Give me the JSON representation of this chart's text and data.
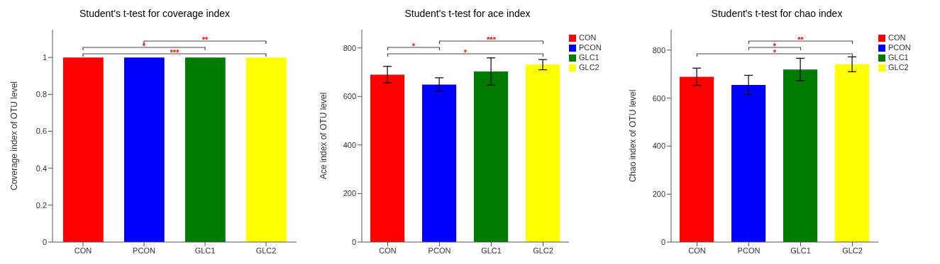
{
  "chart_data": [
    {
      "type": "bar",
      "title": "Student's t-test for coverage index",
      "ylabel": "Coverage index of OTU level",
      "categories": [
        "CON",
        "PCON",
        "GLC1",
        "GLC2"
      ],
      "values": [
        1,
        1,
        1,
        1
      ],
      "colors": [
        "#ff0000",
        "#0000ff",
        "#007a00",
        "#ffff00"
      ],
      "ylim": [
        0,
        1.15
      ],
      "yticks": [
        0,
        0.2,
        0.4,
        0.6,
        0.8,
        1
      ],
      "annotations": [
        "**",
        "*",
        "***"
      ]
    },
    {
      "type": "bar",
      "title": "Student's t-test for ace index",
      "ylabel": "Ace index of OTU level",
      "categories": [
        "CON",
        "PCON",
        "GLC1",
        "GLC2"
      ],
      "ylim": [
        0,
        875
      ],
      "yticks": [
        0,
        200,
        400,
        600,
        800
      ],
      "legend": "right",
      "annotations": [
        "***",
        "*",
        "*"
      ],
      "series": [
        {
          "name": "CON",
          "color": "#ff0000",
          "values": [
            690,
            null,
            null,
            null
          ],
          "errors": [
            34,
            null,
            null,
            null
          ]
        },
        {
          "name": "PCON",
          "color": "#0000ff",
          "values": [
            null,
            649,
            null,
            null
          ],
          "errors": [
            null,
            28,
            null,
            null
          ]
        },
        {
          "name": "GLC1",
          "color": "#007a00",
          "values": [
            null,
            null,
            703,
            null
          ],
          "errors": [
            null,
            null,
            56,
            null
          ]
        },
        {
          "name": "GLC2",
          "color": "#ffff00",
          "values": [
            null,
            null,
            null,
            731
          ],
          "errors": [
            null,
            null,
            null,
            21
          ]
        }
      ]
    },
    {
      "type": "bar",
      "title": "Student's t-test for chao index",
      "ylabel": "Chao index of OTU level",
      "categories": [
        "CON",
        "PCON",
        "GLC1",
        "GLC2"
      ],
      "ylim": [
        0,
        885
      ],
      "yticks": [
        0,
        200,
        400,
        600,
        800
      ],
      "legend": "right",
      "annotations": [
        "**",
        "*",
        "*"
      ],
      "series": [
        {
          "name": "CON",
          "color": "#ff0000",
          "values": [
            689,
            null,
            null,
            null
          ],
          "errors": [
            36,
            null,
            null,
            null
          ]
        },
        {
          "name": "PCON",
          "color": "#0000ff",
          "values": [
            null,
            655,
            null,
            null
          ],
          "errors": [
            null,
            40,
            null,
            null
          ]
        },
        {
          "name": "GLC1",
          "color": "#007a00",
          "values": [
            null,
            null,
            719,
            null
          ],
          "errors": [
            null,
            null,
            47,
            null
          ]
        },
        {
          "name": "GLC2",
          "color": "#ffff00",
          "values": [
            null,
            null,
            null,
            741
          ],
          "errors": [
            null,
            null,
            null,
            31
          ]
        }
      ]
    }
  ]
}
